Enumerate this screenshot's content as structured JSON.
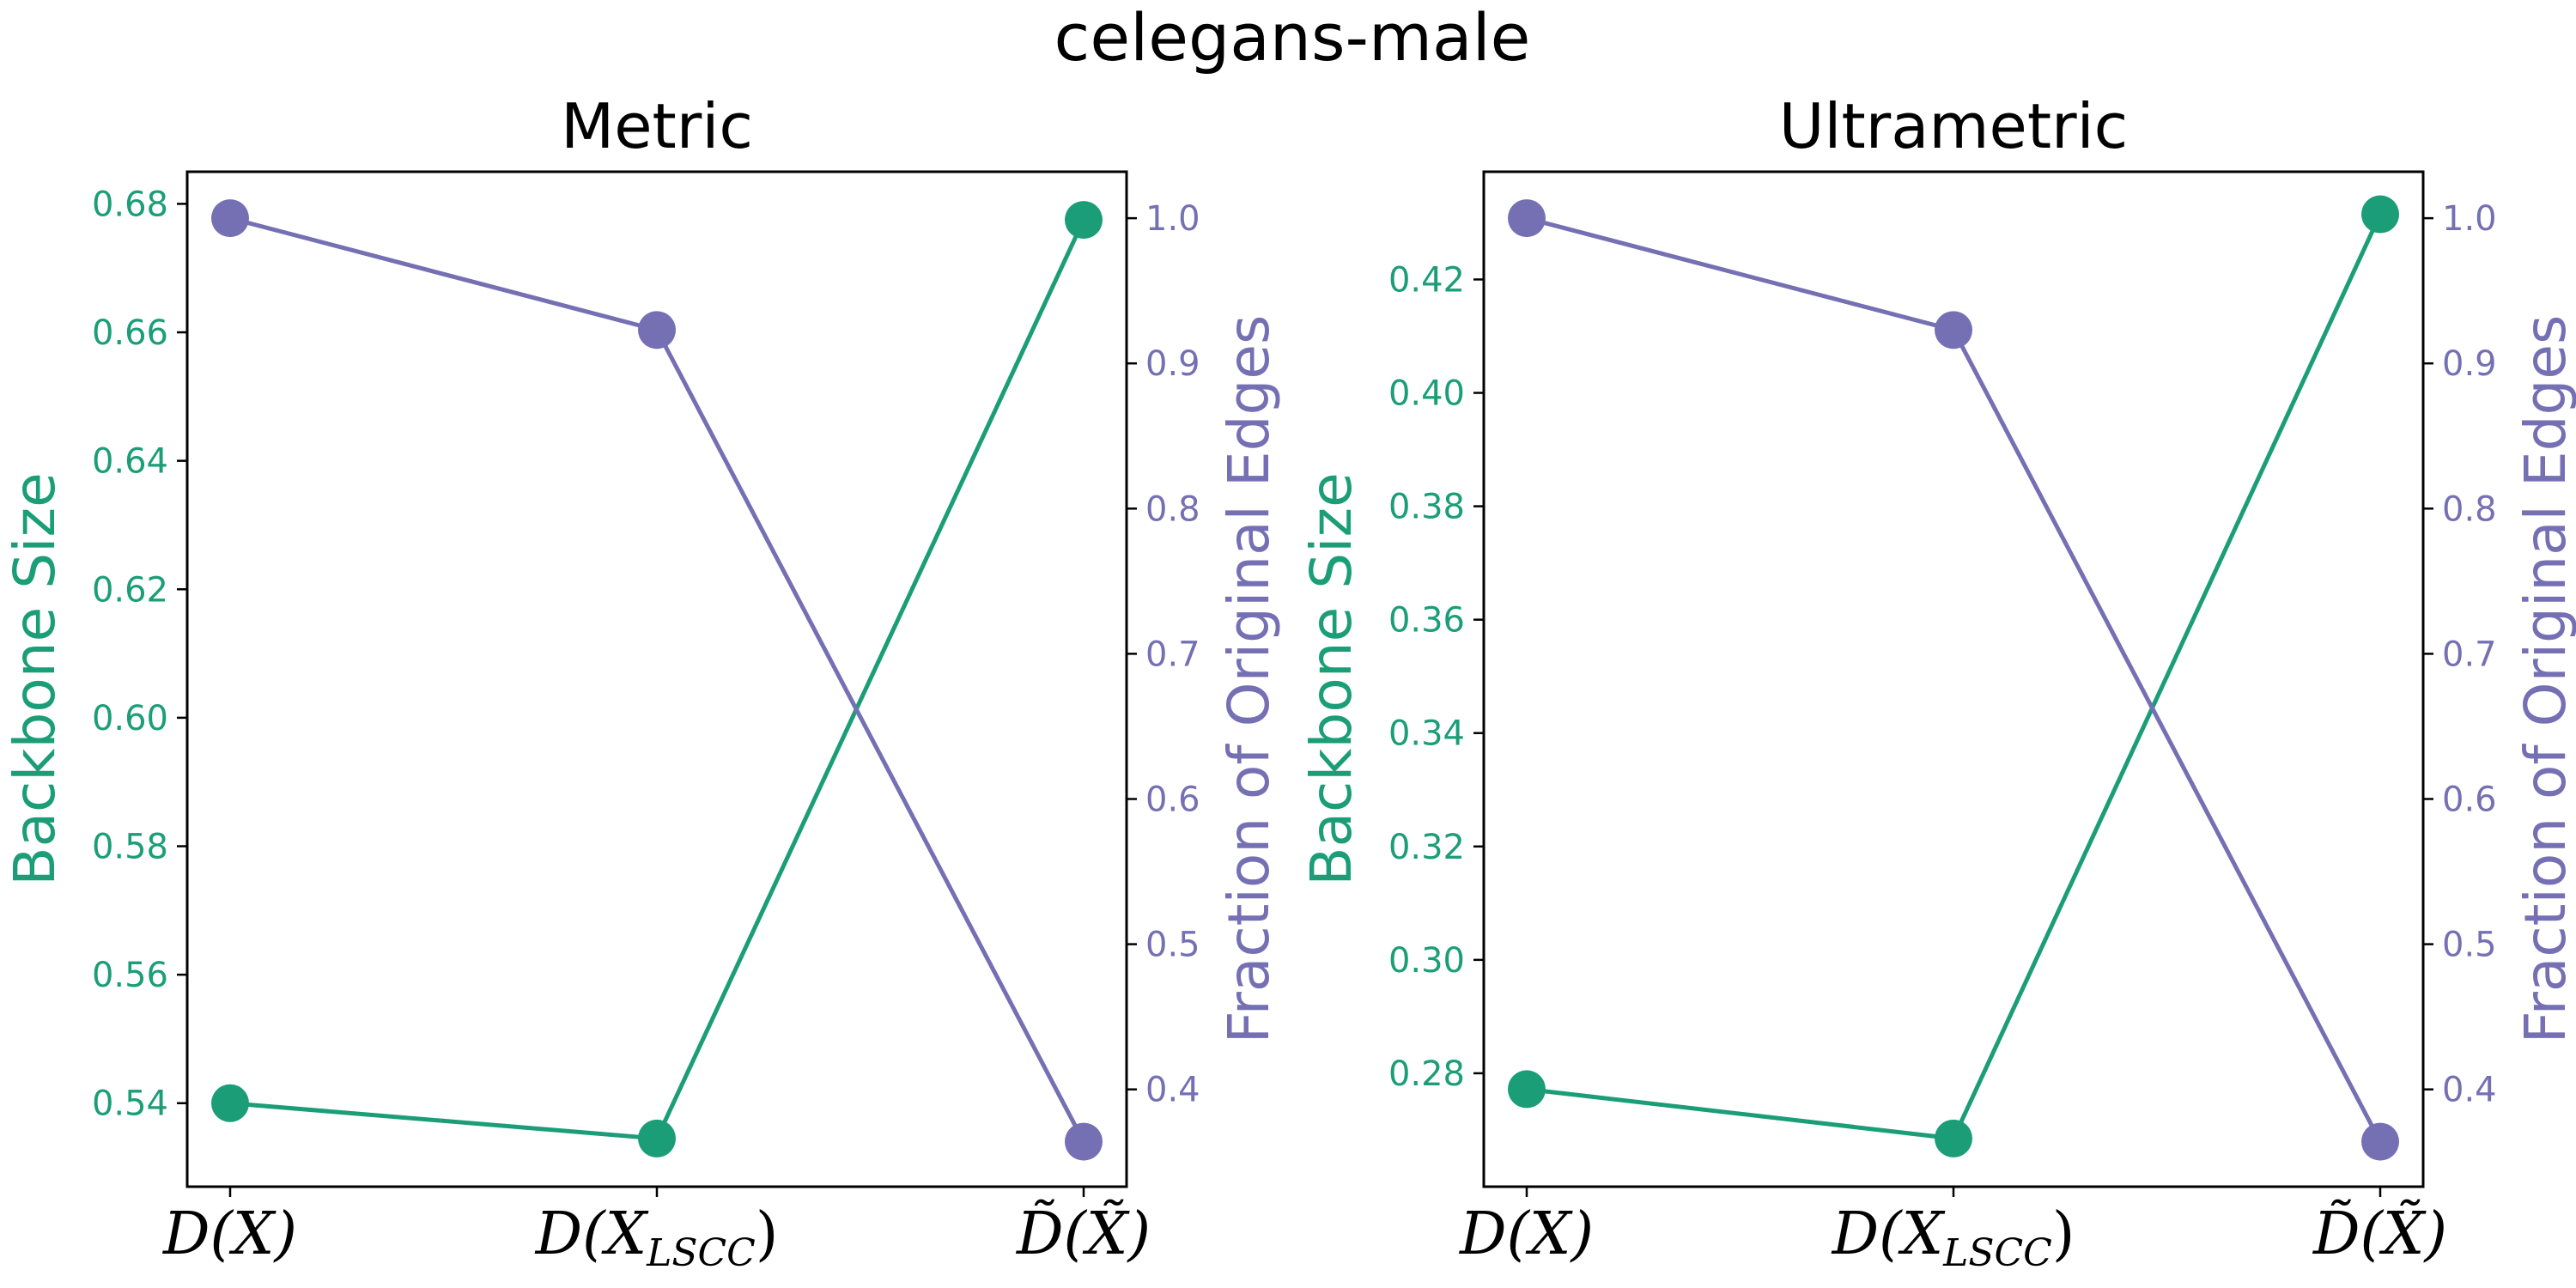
{
  "figure": {
    "title": "celegans-male"
  },
  "colors": {
    "backbone": "#1b9e77",
    "fraction": "#7570b3"
  },
  "chart_data": [
    {
      "type": "line",
      "title": "Metric",
      "categories": [
        "D(X)",
        "D(X_LSCC)",
        "D̃(X̃)"
      ],
      "category_parts": [
        {
          "base": "D(X)",
          "sub": "",
          "tail": ""
        },
        {
          "base": "D(X",
          "sub": "LSCC",
          "tail": ")"
        },
        {
          "base": "D̃(X̃)",
          "sub": "",
          "tail": ""
        }
      ],
      "ylabel_left": "Backbone Size",
      "ylabel_right": "Fraction of Original Edges",
      "ylim_left": [
        0.527,
        0.685
      ],
      "yticks_left": [
        "0.54",
        "0.56",
        "0.58",
        "0.60",
        "0.62",
        "0.64",
        "0.66",
        "0.68"
      ],
      "ylim_right": [
        0.333,
        1.032
      ],
      "yticks_right": [
        "0.4",
        "0.5",
        "0.6",
        "0.7",
        "0.8",
        "0.9",
        "1.0"
      ],
      "series": [
        {
          "name": "Backbone Size",
          "axis": "left",
          "values": [
            0.54,
            0.5345,
            0.6775
          ]
        },
        {
          "name": "Fraction of Original Edges",
          "axis": "right",
          "values": [
            1.0,
            0.923,
            0.364
          ]
        }
      ]
    },
    {
      "type": "line",
      "title": "Ultrametric",
      "categories": [
        "D(X)",
        "D(X_LSCC)",
        "D̃(X̃)"
      ],
      "category_parts": [
        {
          "base": "D(X)",
          "sub": "",
          "tail": ""
        },
        {
          "base": "D(X",
          "sub": "LSCC",
          "tail": ")"
        },
        {
          "base": "D̃(X̃)",
          "sub": "",
          "tail": ""
        }
      ],
      "ylabel_left": "Backbone Size",
      "ylabel_right": "Fraction of Original Edges",
      "ylim_left": [
        0.26,
        0.439
      ],
      "yticks_left": [
        "0.28",
        "0.30",
        "0.32",
        "0.34",
        "0.36",
        "0.38",
        "0.40",
        "0.42"
      ],
      "ylim_right": [
        0.333,
        1.032
      ],
      "yticks_right": [
        "0.4",
        "0.5",
        "0.6",
        "0.7",
        "0.8",
        "0.9",
        "1.0"
      ],
      "series": [
        {
          "name": "Backbone Size",
          "axis": "left",
          "values": [
            0.2772,
            0.2685,
            0.4315
          ]
        },
        {
          "name": "Fraction of Original Edges",
          "axis": "right",
          "values": [
            1.0,
            0.923,
            0.364
          ]
        }
      ]
    }
  ]
}
